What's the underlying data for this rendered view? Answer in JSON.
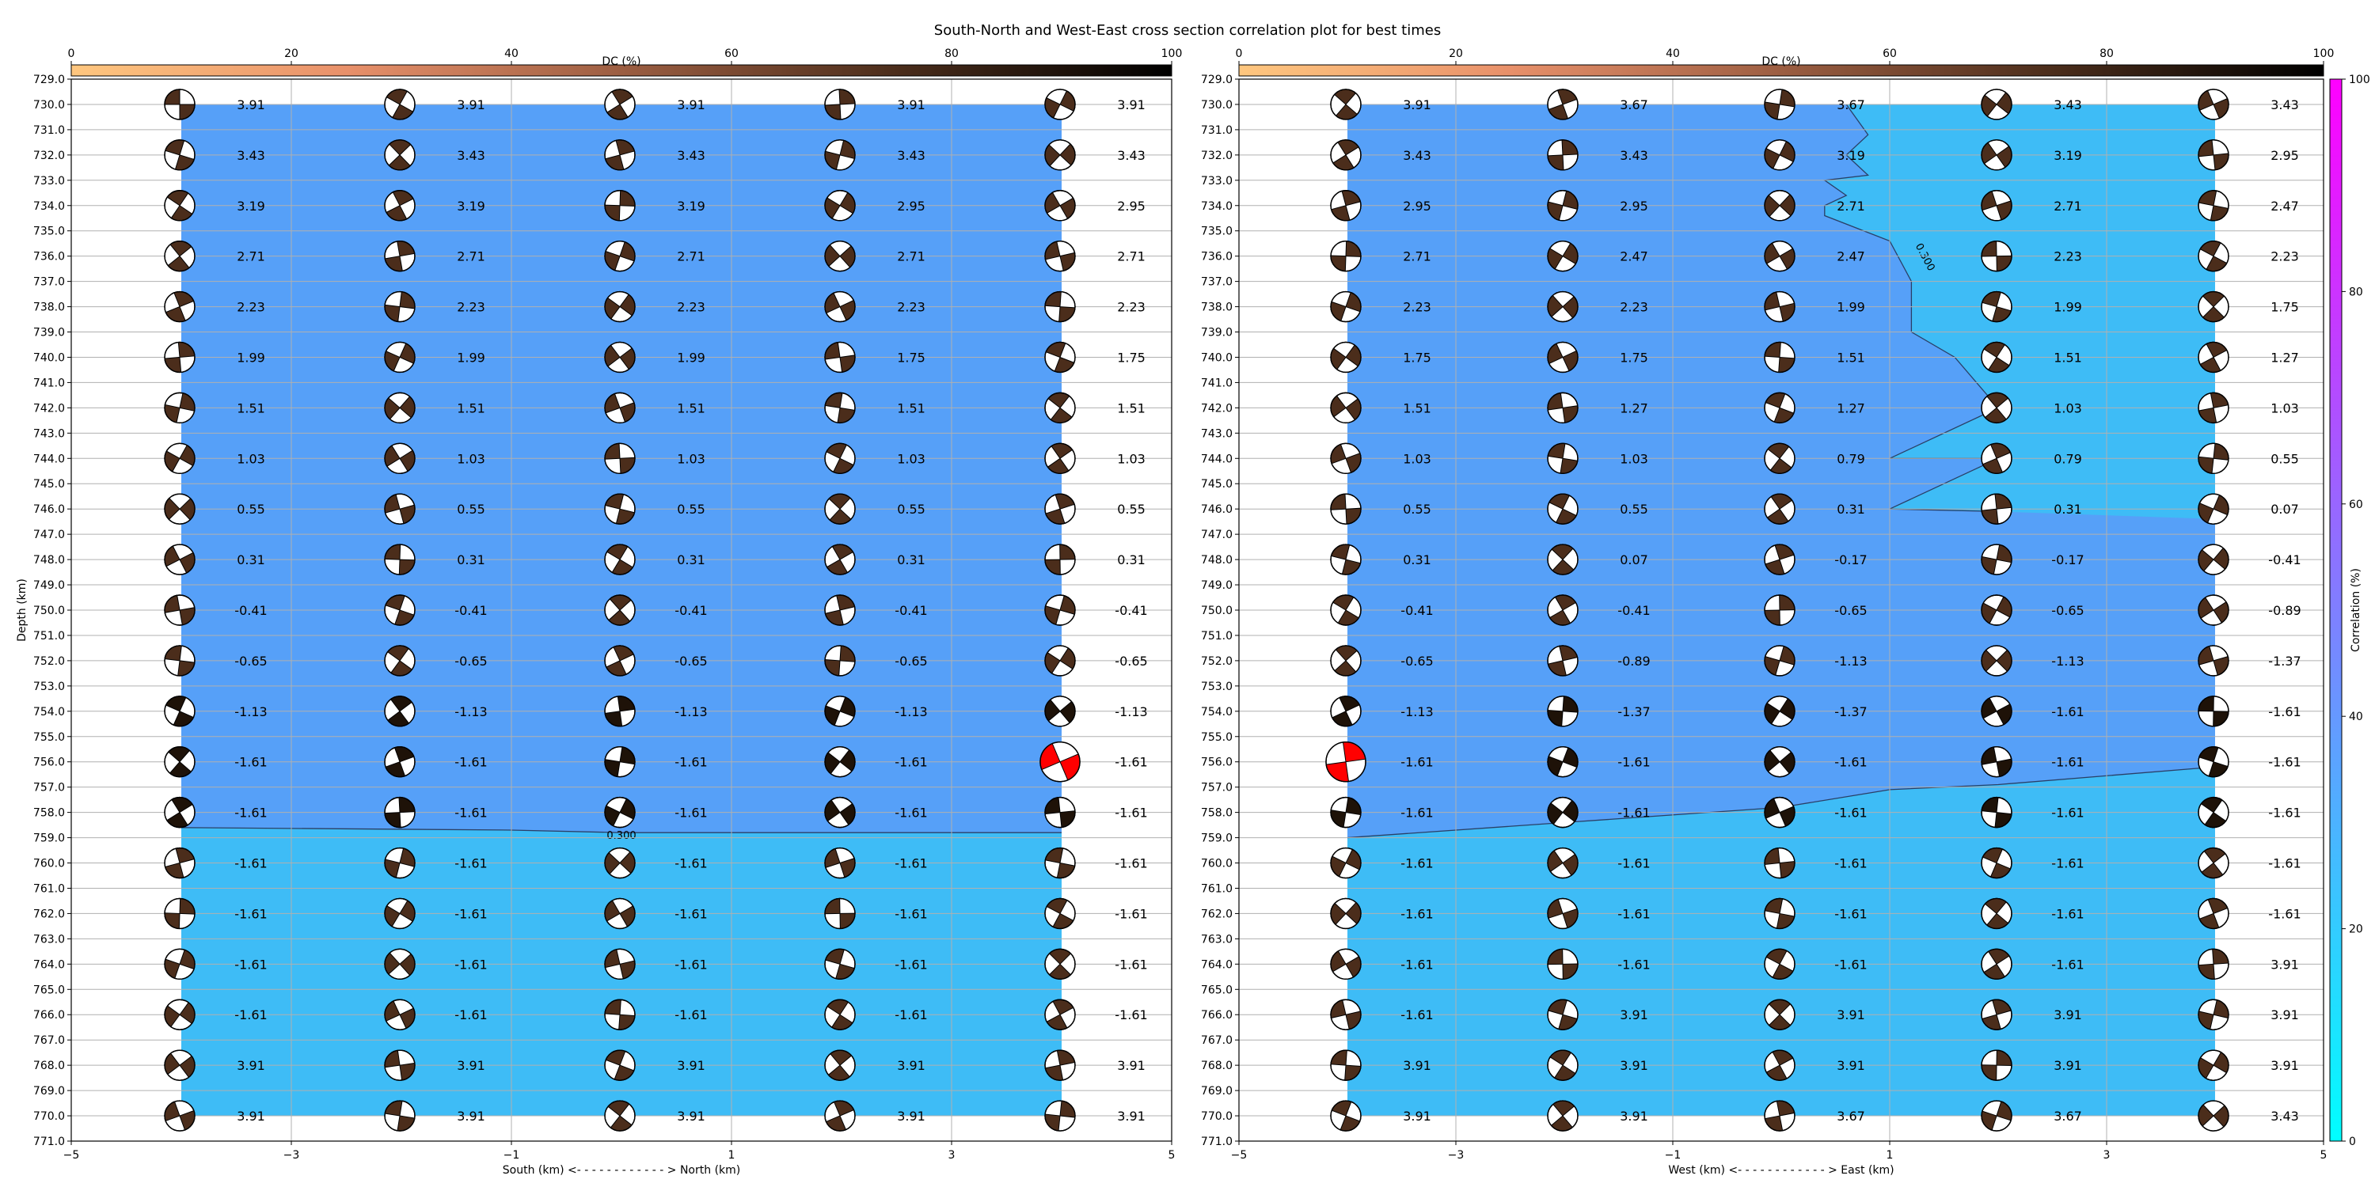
{
  "title": "South-North and West-East cross section correlation plot for best times",
  "colors": {
    "low_corr": "#56a0f8",
    "high_corr": "#3ebcf6",
    "contour": "#2a3f66",
    "best_fill": "#ff0000",
    "mt_dark": "#4b2d1b"
  },
  "chart_data": [
    {
      "type": "contour",
      "panel": "south-north",
      "xlabel": "South (km) <- - - - - - - - - - - - > North (km)",
      "ylabel": "Depth (km)",
      "xlim": [
        -5,
        5
      ],
      "ylim": [
        729,
        771
      ],
      "x_ticks": [
        "−5",
        "−3",
        "−1",
        "1",
        "3",
        "5"
      ],
      "x_tick_values": [
        -5,
        -3,
        -1,
        1,
        3,
        5
      ],
      "y_ticks": [
        "729.0",
        "730.0",
        "731.0",
        "732.0",
        "733.0",
        "734.0",
        "735.0",
        "736.0",
        "737.0",
        "738.0",
        "739.0",
        "740.0",
        "741.0",
        "742.0",
        "743.0",
        "744.0",
        "745.0",
        "746.0",
        "747.0",
        "748.0",
        "749.0",
        "750.0",
        "751.0",
        "752.0",
        "753.0",
        "754.0",
        "755.0",
        "756.0",
        "757.0",
        "758.0",
        "759.0",
        "760.0",
        "761.0",
        "762.0",
        "763.0",
        "764.0",
        "765.0",
        "766.0",
        "767.0",
        "768.0",
        "769.0",
        "770.0",
        "771.0"
      ],
      "dc_colorbar": {
        "label": "DC (%)",
        "ticks": [
          "0",
          "20",
          "40",
          "60",
          "80",
          "100"
        ],
        "range": [
          0,
          100
        ]
      },
      "contour_label": "0.300",
      "contour_line": [
        [
          -4,
          758.6
        ],
        [
          -1,
          758.7
        ],
        [
          0,
          758.8
        ],
        [
          4,
          758.8
        ]
      ],
      "grid_x": [
        -4,
        -2,
        0,
        2,
        4
      ],
      "depths": [
        730,
        732,
        734,
        736,
        738,
        740,
        742,
        744,
        746,
        748,
        750,
        752,
        754,
        756,
        758,
        760,
        762,
        764,
        766,
        768,
        770
      ],
      "values": [
        [
          "3.91",
          "3.91",
          "3.91",
          "3.91",
          "3.91"
        ],
        [
          "3.43",
          "3.43",
          "3.43",
          "3.43",
          "3.43"
        ],
        [
          "3.19",
          "3.19",
          "3.19",
          "2.95",
          "2.95"
        ],
        [
          "2.71",
          "2.71",
          "2.71",
          "2.71",
          "2.71"
        ],
        [
          "2.23",
          "2.23",
          "2.23",
          "2.23",
          "2.23"
        ],
        [
          "1.99",
          "1.99",
          "1.99",
          "1.75",
          "1.75"
        ],
        [
          "1.51",
          "1.51",
          "1.51",
          "1.51",
          "1.51"
        ],
        [
          "1.03",
          "1.03",
          "1.03",
          "1.03",
          "1.03"
        ],
        [
          "0.55",
          "0.55",
          "0.55",
          "0.55",
          "0.55"
        ],
        [
          "0.31",
          "0.31",
          "0.31",
          "0.31",
          "0.31"
        ],
        [
          "-0.41",
          "-0.41",
          "-0.41",
          "-0.41",
          "-0.41"
        ],
        [
          "-0.65",
          "-0.65",
          "-0.65",
          "-0.65",
          "-0.65"
        ],
        [
          "-1.13",
          "-1.13",
          "-1.13",
          "-1.13",
          "-1.13"
        ],
        [
          "-1.61",
          "-1.61",
          "-1.61",
          "-1.61",
          "-1.61"
        ],
        [
          "-1.61",
          "-1.61",
          "-1.61",
          "-1.61",
          "-1.61"
        ],
        [
          "-1.61",
          "-1.61",
          "-1.61",
          "-1.61",
          "-1.61"
        ],
        [
          "-1.61",
          "-1.61",
          "-1.61",
          "-1.61",
          "-1.61"
        ],
        [
          "-1.61",
          "-1.61",
          "-1.61",
          "-1.61",
          "-1.61"
        ],
        [
          "-1.61",
          "-1.61",
          "-1.61",
          "-1.61",
          "-1.61"
        ],
        [
          "3.91",
          "3.91",
          "3.91",
          "3.91",
          "3.91"
        ],
        [
          "3.91",
          "3.91",
          "3.91",
          "3.91",
          "3.91"
        ]
      ],
      "best": {
        "x": 4,
        "depth": 756
      }
    },
    {
      "type": "contour",
      "panel": "west-east",
      "xlabel": "West (km) <- - - - - - - - - - - - > East (km)",
      "ylabel": "",
      "xlim": [
        -5,
        5
      ],
      "ylim": [
        729,
        771
      ],
      "x_ticks": [
        "−5",
        "−3",
        "−1",
        "1",
        "3",
        "5"
      ],
      "x_tick_values": [
        -5,
        -3,
        -1,
        1,
        3,
        5
      ],
      "y_ticks": [
        "729.0",
        "730.0",
        "731.0",
        "732.0",
        "733.0",
        "734.0",
        "735.0",
        "736.0",
        "737.0",
        "738.0",
        "739.0",
        "740.0",
        "741.0",
        "742.0",
        "743.0",
        "744.0",
        "745.0",
        "746.0",
        "747.0",
        "748.0",
        "749.0",
        "750.0",
        "751.0",
        "752.0",
        "753.0",
        "754.0",
        "755.0",
        "756.0",
        "757.0",
        "758.0",
        "759.0",
        "760.0",
        "761.0",
        "762.0",
        "763.0",
        "764.0",
        "765.0",
        "766.0",
        "767.0",
        "768.0",
        "769.0",
        "770.0",
        "771.0"
      ],
      "dc_colorbar": {
        "label": "DC (%)",
        "ticks": [
          "0",
          "20",
          "40",
          "60",
          "80",
          "100"
        ],
        "range": [
          0,
          100
        ]
      },
      "corr_colorbar": {
        "label": "Correlation (%)",
        "ticks": [
          "0",
          "20",
          "40",
          "60",
          "80",
          "100"
        ],
        "range": [
          0,
          100
        ]
      },
      "contour_label": "0.300",
      "contour_line": [
        [
          -4,
          759
        ],
        [
          -2,
          758.4
        ],
        [
          0,
          757.8
        ],
        [
          1,
          757.1
        ],
        [
          2,
          756.9
        ],
        [
          4,
          756.2
        ]
      ],
      "upper_region": [
        [
          0.6,
          730
        ],
        [
          4,
          730
        ],
        [
          4,
          746.4
        ],
        [
          2,
          746.1
        ],
        [
          1.0,
          746.0
        ],
        [
          2,
          744
        ],
        [
          1.0,
          744
        ],
        [
          2,
          742
        ],
        [
          1.6,
          740
        ],
        [
          1.2,
          739
        ],
        [
          1.2,
          737
        ],
        [
          1.0,
          735.4
        ],
        [
          0.4,
          734.4
        ],
        [
          0.4,
          734
        ],
        [
          0.6,
          733.6
        ],
        [
          0.4,
          733
        ],
        [
          0.8,
          732.8
        ],
        [
          0.6,
          732
        ],
        [
          0.8,
          731.2
        ]
      ],
      "grid_x": [
        -4,
        -2,
        0,
        2,
        4
      ],
      "depths": [
        730,
        732,
        734,
        736,
        738,
        740,
        742,
        744,
        746,
        748,
        750,
        752,
        754,
        756,
        758,
        760,
        762,
        764,
        766,
        768,
        770
      ],
      "values": [
        [
          "3.91",
          "3.67",
          "3.67",
          "3.43",
          "3.43"
        ],
        [
          "3.43",
          "3.43",
          "3.19",
          "3.19",
          "2.95"
        ],
        [
          "2.95",
          "2.95",
          "2.71",
          "2.71",
          "2.47"
        ],
        [
          "2.71",
          "2.47",
          "2.47",
          "2.23",
          "2.23"
        ],
        [
          "2.23",
          "2.23",
          "1.99",
          "1.99",
          "1.75"
        ],
        [
          "1.75",
          "1.75",
          "1.51",
          "1.51",
          "1.27"
        ],
        [
          "1.51",
          "1.27",
          "1.27",
          "1.03",
          "1.03"
        ],
        [
          "1.03",
          "1.03",
          "0.79",
          "0.79",
          "0.55"
        ],
        [
          "0.55",
          "0.55",
          "0.31",
          "0.31",
          "0.07"
        ],
        [
          "0.31",
          "0.07",
          "-0.17",
          "-0.17",
          "-0.41"
        ],
        [
          "-0.41",
          "-0.41",
          "-0.65",
          "-0.65",
          "-0.89"
        ],
        [
          "-0.65",
          "-0.89",
          "-1.13",
          "-1.13",
          "-1.37"
        ],
        [
          "-1.13",
          "-1.37",
          "-1.37",
          "-1.61",
          "-1.61"
        ],
        [
          "-1.61",
          "-1.61",
          "-1.61",
          "-1.61",
          "-1.61"
        ],
        [
          "-1.61",
          "-1.61",
          "-1.61",
          "-1.61",
          "-1.61"
        ],
        [
          "-1.61",
          "-1.61",
          "-1.61",
          "-1.61",
          "-1.61"
        ],
        [
          "-1.61",
          "-1.61",
          "-1.61",
          "-1.61",
          "-1.61"
        ],
        [
          "-1.61",
          "-1.61",
          "-1.61",
          "-1.61",
          "3.91"
        ],
        [
          "-1.61",
          "3.91",
          "3.91",
          "3.91",
          "3.91"
        ],
        [
          "3.91",
          "3.91",
          "3.91",
          "3.91",
          "3.91"
        ],
        [
          "3.91",
          "3.91",
          "3.67",
          "3.67",
          "3.43"
        ]
      ],
      "best": {
        "x": -4,
        "depth": 756
      }
    }
  ]
}
